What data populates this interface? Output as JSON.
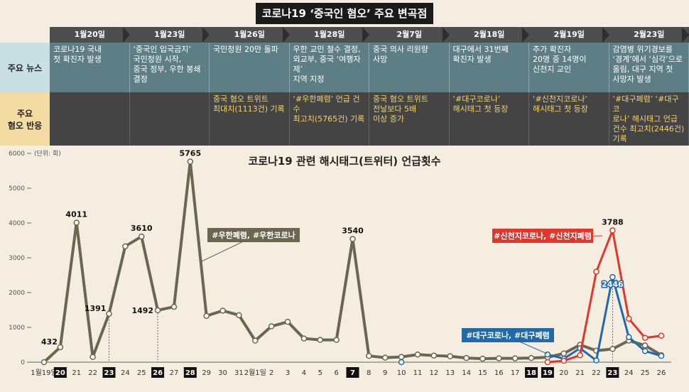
{
  "title": "코로나19 ‘중국인 혐오’ 주요 변곡점",
  "timeline": {
    "dates": [
      "1월20일",
      "1월23일",
      "1월26일",
      "1월28일",
      "2월7일",
      "2월18일",
      "2월19일",
      "2월23일"
    ]
  },
  "rows": {
    "news_label": "주요 뉴스",
    "react_label_1": "주요",
    "react_label_2": "혐오 반응"
  },
  "news": [
    "코로나19 국내\n첫 확진자 발생",
    "‘중국인 입국금지’\n국민청원 시작,\n중국 정부, 우한 봉쇄\n결정",
    "국민청원 20만 돌파",
    "우한 교민 철수 결정,\n외교부, 중국 ‘여행자제’\n지역 지정",
    "중국 의사 리원량\n사망",
    "대구에서 31번째\n확진자 발생",
    "추가 확진자\n20명 중 14명이\n신천지 교인",
    "감염병 위기경보를\n‘경계’에서 ‘심각’으로\n올림, 대구 지역 첫\n사망자 발생"
  ],
  "reactions": [
    "",
    "",
    "중국 혐오 트위트\n최대치(1113건) 기록",
    "‘#우한폐렴’ 언급 건수\n최고치(5765건) 기록",
    "중국 혐오 트위트\n전날보다 5배\n이상 증가",
    "‘#대구코로나’\n해시태그 첫 등장",
    "‘#신천지코로나’\n해시태그 첫 등장",
    "‘#대구폐렴’ ‘#대구코\n로나’ 해시태그 언급\n건수 최고치(2446건)\n기록"
  ],
  "chart_data": {
    "type": "line",
    "title": "코로나19 관련 해시태그(트위터) 언급횟수",
    "unit_label": "(단위: 회)",
    "ylim": [
      0,
      6000
    ],
    "yticks": [
      0,
      1000,
      2000,
      3000,
      4000,
      5000,
      6000
    ],
    "x": [
      "1월19일",
      "20",
      "21",
      "22",
      "23",
      "24",
      "25",
      "26",
      "27",
      "28",
      "29",
      "30",
      "31",
      "2월1일",
      "2",
      "3",
      "4",
      "5",
      "6",
      "7",
      "8",
      "9",
      "10",
      "11",
      "12",
      "13",
      "14",
      "15",
      "16",
      "17",
      "18",
      "19",
      "20",
      "21",
      "22",
      "23",
      "24",
      "25",
      "26"
    ],
    "highlight_x": [
      "20",
      "23",
      "26",
      "28",
      "7",
      "18",
      "19",
      "23"
    ],
    "series": [
      {
        "name": "#우한폐렴, #우한코로나",
        "color": "#6b6650",
        "values": [
          0,
          432,
          4011,
          150,
          1391,
          3330,
          3610,
          1492,
          1590,
          5765,
          1330,
          1480,
          1350,
          620,
          1030,
          1160,
          680,
          640,
          640,
          3540,
          180,
          130,
          150,
          220,
          190,
          170,
          120,
          100,
          110,
          110,
          120,
          140,
          250,
          500,
          330,
          380,
          620,
          480,
          200
        ]
      },
      {
        "name": "#대구코로나, #대구폐렴",
        "color": "#1e6aaa",
        "values": [
          null,
          null,
          null,
          null,
          null,
          null,
          null,
          null,
          null,
          null,
          null,
          null,
          null,
          null,
          null,
          null,
          null,
          null,
          null,
          null,
          null,
          null,
          0,
          null,
          null,
          null,
          null,
          null,
          null,
          null,
          null,
          220,
          100,
          400,
          50,
          2446,
          720,
          320,
          180
        ]
      },
      {
        "name": "#신천지코로나, #신천지폐렴",
        "color": "#e2352b",
        "values": [
          null,
          null,
          null,
          null,
          null,
          null,
          null,
          null,
          null,
          null,
          null,
          null,
          null,
          null,
          null,
          null,
          null,
          null,
          null,
          null,
          null,
          null,
          null,
          null,
          null,
          null,
          null,
          null,
          null,
          null,
          null,
          0,
          40,
          200,
          2600,
          3788,
          1250,
          700,
          760
        ]
      }
    ],
    "labels": [
      {
        "x_index": 1,
        "value": 432,
        "text": "432"
      },
      {
        "x_index": 2,
        "value": 4011,
        "text": "4011"
      },
      {
        "x_index": 4,
        "value": 1391,
        "text": "1391"
      },
      {
        "x_index": 6,
        "value": 3610,
        "text": "3610"
      },
      {
        "x_index": 7,
        "value": 1492,
        "text": "1492"
      },
      {
        "x_index": 9,
        "value": 5765,
        "text": "5765"
      },
      {
        "x_index": 19,
        "value": 3540,
        "text": "3540"
      },
      {
        "x_index": 35,
        "value": 3788,
        "text": "3788"
      },
      {
        "x_index": 35,
        "value": 2446,
        "text": "2446"
      }
    ]
  }
}
